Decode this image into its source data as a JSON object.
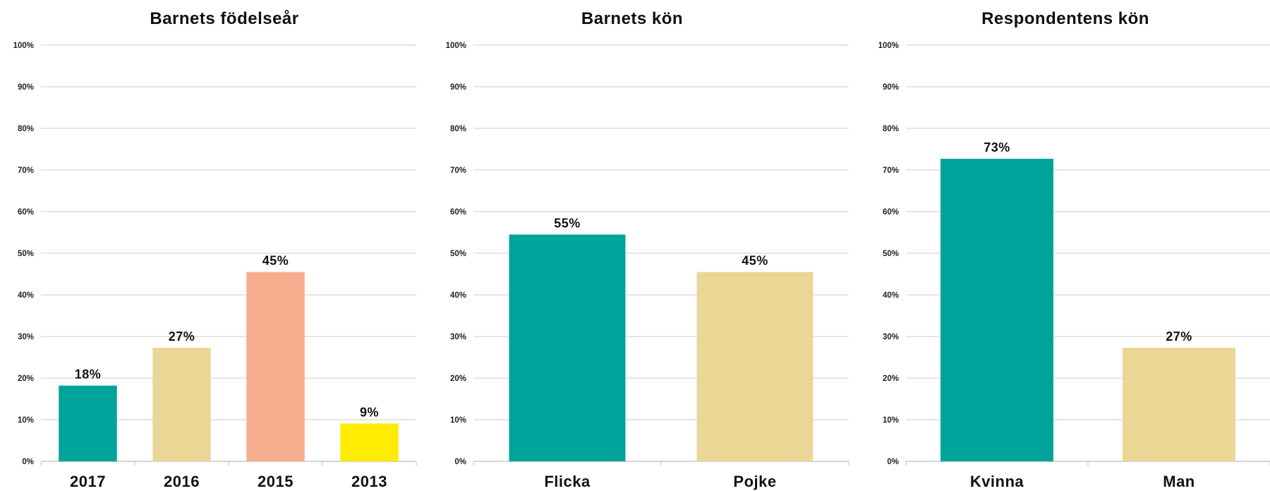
{
  "chart_data": [
    {
      "type": "bar",
      "title": "Barnets födelseår",
      "categories": [
        "2017",
        "2016",
        "2015",
        "2013"
      ],
      "values": [
        18.2,
        27.3,
        45.5,
        9.1
      ],
      "data_labels": [
        "18%",
        "27%",
        "45%",
        "9%"
      ],
      "colors": [
        "#00a39a",
        "#ebd795",
        "#f6ad8d",
        "#ffec00"
      ],
      "ylim": [
        0,
        100
      ],
      "y_ticks": [
        "0%",
        "10%",
        "20%",
        "30%",
        "40%",
        "50%",
        "60%",
        "70%",
        "80%",
        "90%",
        "100%"
      ],
      "grid": true
    },
    {
      "type": "bar",
      "title": "Barnets kön",
      "categories": [
        "Flicka",
        "Pojke"
      ],
      "values": [
        54.5,
        45.5
      ],
      "data_labels": [
        "55%",
        "45%"
      ],
      "colors": [
        "#00a39a",
        "#ebd795"
      ],
      "ylim": [
        0,
        100
      ],
      "y_ticks": [
        "0%",
        "10%",
        "20%",
        "30%",
        "40%",
        "50%",
        "60%",
        "70%",
        "80%",
        "90%",
        "100%"
      ],
      "grid": true
    },
    {
      "type": "bar",
      "title": "Respondentens kön",
      "categories": [
        "Kvinna",
        "Man"
      ],
      "values": [
        72.7,
        27.3
      ],
      "data_labels": [
        "73%",
        "27%"
      ],
      "colors": [
        "#00a39a",
        "#ebd795"
      ],
      "ylim": [
        0,
        100
      ],
      "y_ticks": [
        "0%",
        "10%",
        "20%",
        "30%",
        "40%",
        "50%",
        "60%",
        "70%",
        "80%",
        "90%",
        "100%"
      ],
      "grid": true
    }
  ]
}
